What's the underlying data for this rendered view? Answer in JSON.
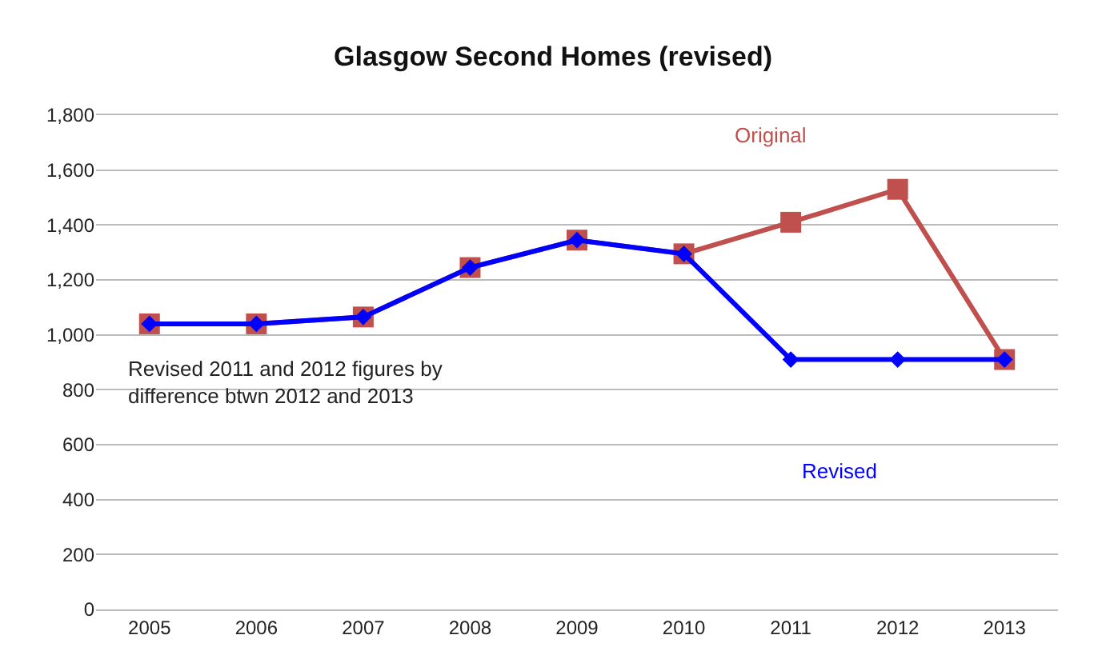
{
  "chart_data": {
    "type": "line",
    "title": "Glasgow Second Homes (revised)",
    "categories": [
      "2005",
      "2006",
      "2007",
      "2008",
      "2009",
      "2010",
      "2011",
      "2012",
      "2013"
    ],
    "series": [
      {
        "name": "Original",
        "color": "#c0504d",
        "marker": "square",
        "values": [
          1040,
          1040,
          1065,
          1245,
          1345,
          1295,
          1410,
          1530,
          910
        ]
      },
      {
        "name": "Revised",
        "color": "#0000ff",
        "marker": "diamond",
        "values": [
          1040,
          1040,
          1065,
          1245,
          1345,
          1295,
          910,
          910,
          910
        ]
      }
    ],
    "ylim": [
      0,
      1800
    ],
    "yticks": [
      {
        "value": 0,
        "label": "0"
      },
      {
        "value": 200,
        "label": "200"
      },
      {
        "value": 400,
        "label": "400"
      },
      {
        "value": 600,
        "label": "600"
      },
      {
        "value": 800,
        "label": "800"
      },
      {
        "value": 1000,
        "label": "1,000"
      },
      {
        "value": 1200,
        "label": "1,200"
      },
      {
        "value": 1400,
        "label": "1,400"
      },
      {
        "value": 1600,
        "label": "1,600"
      },
      {
        "value": 1800,
        "label": "1,800"
      }
    ],
    "grid": "y",
    "legend": false,
    "annotations": [
      "Revised 2011 and 2012 figures by\ndifference btwn 2012 and 2013"
    ]
  }
}
